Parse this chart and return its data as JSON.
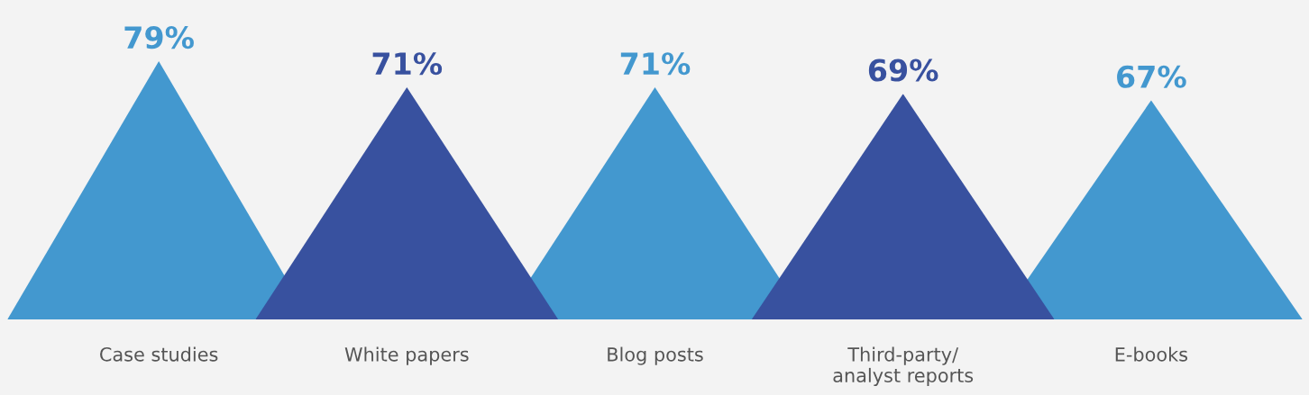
{
  "chart_data": {
    "type": "bar",
    "categories": [
      "Case studies",
      "White papers",
      "Blog posts",
      "Third-party/\nanalyst reports",
      "E-books"
    ],
    "values": [
      79,
      71,
      71,
      69,
      67
    ],
    "colors": [
      "#4398cf",
      "#38519f",
      "#4398cf",
      "#38519f",
      "#4398cf"
    ],
    "value_labels": [
      "79%",
      "71%",
      "71%",
      "69%",
      "67%"
    ],
    "tick_labels": "x",
    "grid": false,
    "legend": false
  }
}
